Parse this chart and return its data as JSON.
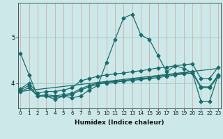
{
  "xlabel": "Humidex (Indice chaleur)",
  "bg_color": "#cce8e8",
  "line_color": "#1a6b6b",
  "x_ticks": [
    0,
    1,
    2,
    3,
    4,
    5,
    6,
    7,
    8,
    9,
    10,
    11,
    12,
    13,
    14,
    15,
    16,
    17,
    18,
    19,
    20,
    21,
    22,
    23
  ],
  "y_ticks": [
    4,
    5
  ],
  "ylim": [
    3.45,
    5.75
  ],
  "xlim": [
    -0.3,
    23.3
  ],
  "curves": [
    {
      "x": [
        0,
        1,
        2,
        3,
        4,
        5,
        6,
        7,
        8,
        9,
        10,
        11,
        12,
        13,
        14,
        15,
        16,
        17,
        18,
        19,
        20,
        21,
        22,
        23
      ],
      "y": [
        4.65,
        4.18,
        3.72,
        3.72,
        3.65,
        3.72,
        3.68,
        3.72,
        3.85,
        3.95,
        4.45,
        4.95,
        5.42,
        5.5,
        5.05,
        4.95,
        4.6,
        4.25,
        4.38,
        4.32,
        4.22,
        3.6,
        3.6,
        4.18
      ],
      "marker": true
    },
    {
      "x": [
        0,
        1,
        2,
        3,
        4,
        5,
        6,
        7,
        8,
        9,
        10,
        11,
        12,
        13,
        14,
        15,
        16,
        17,
        18,
        19,
        20,
        21,
        22,
        23
      ],
      "y": [
        3.88,
        4.0,
        3.78,
        3.82,
        3.82,
        3.85,
        3.9,
        4.05,
        4.1,
        4.15,
        4.18,
        4.2,
        4.22,
        4.25,
        4.27,
        4.3,
        4.33,
        4.35,
        4.38,
        4.4,
        4.42,
        4.1,
        4.1,
        4.35
      ],
      "marker": true
    },
    {
      "x": [
        0,
        1,
        2,
        3,
        4,
        5,
        6,
        7,
        8,
        9,
        10,
        11,
        12,
        13,
        14,
        15,
        16,
        17,
        18,
        19,
        20,
        21,
        22,
        23
      ],
      "y": [
        3.85,
        3.95,
        3.72,
        3.75,
        3.72,
        3.75,
        3.78,
        3.88,
        3.95,
        4.0,
        4.02,
        4.04,
        4.06,
        4.08,
        4.1,
        4.12,
        4.15,
        4.18,
        4.2,
        4.22,
        4.25,
        3.92,
        3.92,
        4.18
      ],
      "marker": true
    },
    {
      "x": [
        0,
        1,
        2,
        3,
        4,
        5,
        6,
        7,
        8,
        9,
        10,
        11,
        12,
        13,
        14,
        15,
        16,
        17,
        18,
        19,
        20,
        21,
        22,
        23
      ],
      "y": [
        3.82,
        3.9,
        3.72,
        3.72,
        3.7,
        3.72,
        3.75,
        3.85,
        3.92,
        3.98,
        4.0,
        4.02,
        4.04,
        4.06,
        4.08,
        4.1,
        4.12,
        4.15,
        4.18,
        4.2,
        4.22,
        3.9,
        3.9,
        4.15
      ],
      "marker": true
    },
    {
      "x": [
        0,
        23
      ],
      "y": [
        3.82,
        4.32
      ],
      "marker": false
    }
  ],
  "markersize": 2.5,
  "linewidth": 0.9,
  "xlabel_fontsize": 6.5,
  "tick_fontsize": 5.2
}
